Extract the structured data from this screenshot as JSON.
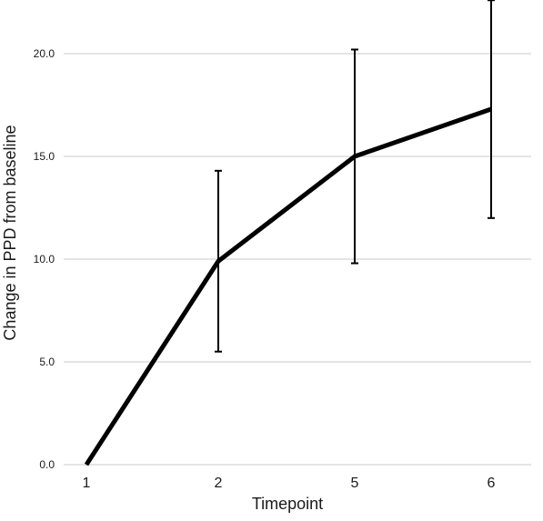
{
  "chart_data": {
    "type": "line",
    "categories": [
      "1",
      "2",
      "5",
      "6"
    ],
    "series": [
      {
        "values": [
          0.0,
          9.9,
          15.0,
          17.3
        ],
        "error_upper": [
          0.0,
          14.3,
          20.2,
          22.6
        ],
        "error_lower": [
          0.0,
          5.5,
          9.8,
          12.0
        ]
      }
    ],
    "xlabel": "Timepoint",
    "ylabel": "Change in PPD from baseline",
    "ylim": [
      0,
      22.5
    ],
    "yticks": [
      "0.0",
      "5.0",
      "10.0",
      "15.0",
      "20.0"
    ],
    "grid": true,
    "colors": {
      "line": "#000000",
      "grid": "#c8c8c8",
      "text": "#1a1a1a"
    }
  }
}
